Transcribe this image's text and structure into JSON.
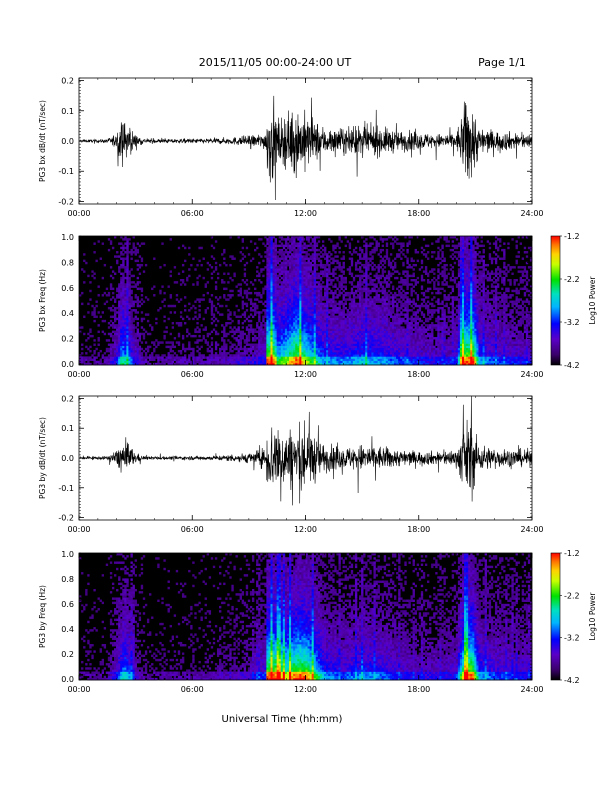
{
  "header": {
    "date_range": "2015/11/05  00:00-24:00 UT",
    "page": "Page 1/1"
  },
  "footer": {
    "xlabel": "Universal Time (hh:mm)"
  },
  "chart_data": [
    {
      "type": "line",
      "ylabel": "PG3 bx dB/dt (nT/sec)",
      "xlim_hours": [
        0,
        24
      ],
      "ylim": [
        -0.2,
        0.2
      ],
      "yticks": [
        "0.2",
        "0.1",
        "0.0",
        "-0.1",
        "-0.2"
      ],
      "xticks": [
        "00:00",
        "06:00",
        "12:00",
        "18:00",
        "24:00"
      ],
      "envelope": {
        "description": "time series amplitude envelope (hours, amplitude)",
        "baseline_hour_amp": [
          [
            0,
            0.008
          ],
          [
            1.5,
            0.01
          ],
          [
            2.0,
            0.05
          ],
          [
            2.3,
            0.12
          ],
          [
            2.6,
            0.09
          ],
          [
            3.0,
            0.04
          ],
          [
            3.5,
            0.012
          ],
          [
            5,
            0.012
          ],
          [
            7,
            0.015
          ],
          [
            8,
            0.02
          ],
          [
            9,
            0.03
          ],
          [
            9.9,
            0.05
          ],
          [
            10.0,
            0.25
          ],
          [
            10.3,
            0.25
          ],
          [
            10.5,
            0.12
          ],
          [
            11,
            0.15
          ],
          [
            11.5,
            0.2
          ],
          [
            12,
            0.16
          ],
          [
            12.5,
            0.12
          ],
          [
            13,
            0.08
          ],
          [
            14,
            0.07
          ],
          [
            15,
            0.09
          ],
          [
            16,
            0.08
          ],
          [
            17,
            0.06
          ],
          [
            18,
            0.05
          ],
          [
            19,
            0.04
          ],
          [
            20,
            0.05
          ],
          [
            20.5,
            0.25
          ],
          [
            20.8,
            0.25
          ],
          [
            21.2,
            0.08
          ],
          [
            22,
            0.06
          ],
          [
            23,
            0.05
          ],
          [
            24,
            0.04
          ]
        ]
      }
    },
    {
      "type": "heatmap",
      "ylabel": "PG3 bx Freq (Hz)",
      "xlim_hours": [
        0,
        24
      ],
      "ylim": [
        0.0,
        1.0
      ],
      "yticks": [
        "1.0",
        "0.8",
        "0.6",
        "0.4",
        "0.2",
        "0.0"
      ],
      "xticks": [
        "00:00",
        "06:00",
        "12:00",
        "18:00",
        "24:00"
      ],
      "colorbar": {
        "label": "Log10 Power",
        "range": [
          -4.2,
          -1.2
        ],
        "ticks": [
          "-1.2",
          "-2.2",
          "-3.2",
          "-4.2"
        ]
      }
    },
    {
      "type": "line",
      "ylabel": "PG3 by dB/dt (nT/sec)",
      "xlim_hours": [
        0,
        24
      ],
      "ylim": [
        -0.2,
        0.2
      ],
      "yticks": [
        "0.2",
        "0.1",
        "0.0",
        "-0.1",
        "-0.2"
      ],
      "xticks": [
        "00:00",
        "06:00",
        "12:00",
        "18:00",
        "24:00"
      ],
      "envelope": {
        "description": "time series amplitude envelope (hours, amplitude)",
        "baseline_hour_amp": [
          [
            0,
            0.008
          ],
          [
            1.5,
            0.01
          ],
          [
            2.0,
            0.05
          ],
          [
            2.4,
            0.11
          ],
          [
            2.7,
            0.08
          ],
          [
            3.0,
            0.03
          ],
          [
            3.5,
            0.01
          ],
          [
            5,
            0.01
          ],
          [
            7,
            0.013
          ],
          [
            8,
            0.02
          ],
          [
            9,
            0.03
          ],
          [
            9.9,
            0.06
          ],
          [
            10.0,
            0.22
          ],
          [
            10.5,
            0.2
          ],
          [
            11,
            0.16
          ],
          [
            11.5,
            0.2
          ],
          [
            12,
            0.2
          ],
          [
            12.5,
            0.14
          ],
          [
            13,
            0.08
          ],
          [
            14,
            0.06
          ],
          [
            15,
            0.08
          ],
          [
            16,
            0.07
          ],
          [
            17,
            0.05
          ],
          [
            18,
            0.04
          ],
          [
            19,
            0.04
          ],
          [
            20,
            0.05
          ],
          [
            20.5,
            0.22
          ],
          [
            20.8,
            0.22
          ],
          [
            21.2,
            0.08
          ],
          [
            22,
            0.06
          ],
          [
            23,
            0.05
          ],
          [
            24,
            0.05
          ]
        ]
      }
    },
    {
      "type": "heatmap",
      "ylabel": "PG3 by Freq (Hz)",
      "xlim_hours": [
        0,
        24
      ],
      "ylim": [
        0.0,
        1.0
      ],
      "yticks": [
        "1.0",
        "0.8",
        "0.6",
        "0.4",
        "0.2",
        "0.0"
      ],
      "xticks": [
        "00:00",
        "06:00",
        "12:00",
        "18:00",
        "24:00"
      ],
      "colorbar": {
        "label": "Log10 Power",
        "range": [
          -4.2,
          -1.2
        ],
        "ticks": [
          "-1.2",
          "-2.2",
          "-3.2",
          "-4.2"
        ]
      }
    }
  ]
}
